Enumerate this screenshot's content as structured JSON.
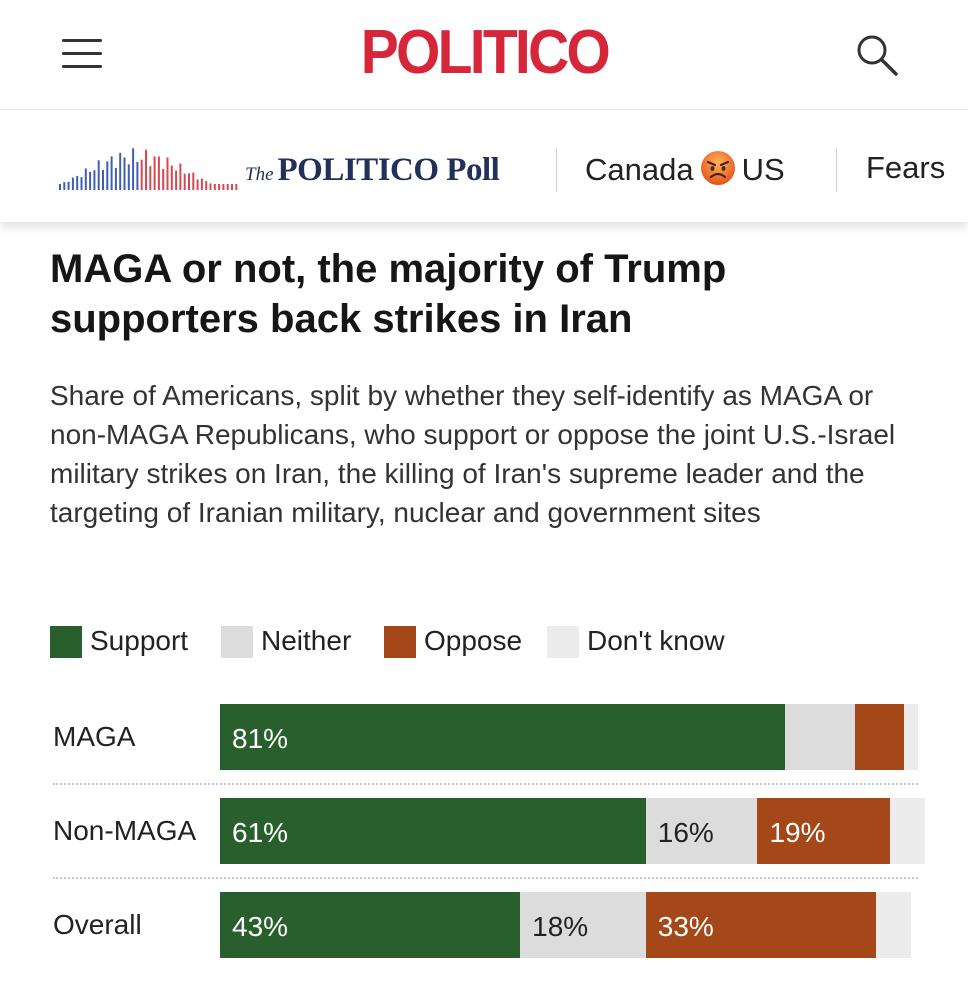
{
  "header": {
    "logo": "POLITICO"
  },
  "poll_bar": {
    "poll_prefix": "The",
    "poll_name": "POLITICO Poll",
    "nav_items": [
      "Canada",
      "US",
      "Fears"
    ],
    "emoji": "angry-face-icon"
  },
  "article": {
    "headline": "MAGA or not, the majority of Trump supporters back strikes in Iran",
    "subtitle": "Share of Americans, split by whether they self-identify as MAGA or non-MAGA Republicans, who support or oppose the joint U.S.-Israel military strikes on Iran, the killing of Iran's supreme leader and the targeting of Iranian military, nuclear and government sites"
  },
  "colors": {
    "support": "#285f2c",
    "neither": "#dcdcdc",
    "oppose": "#a4481a",
    "dont_know": "#ececec",
    "brand_red": "#d6263a",
    "poll_navy": "#22305a"
  },
  "chart_data": {
    "type": "bar",
    "orientation": "horizontal",
    "stacked": true,
    "title": "MAGA or not, the majority of Trump supporters back strikes in Iran",
    "categories": [
      "MAGA",
      "Non-MAGA",
      "Overall"
    ],
    "series": [
      {
        "name": "Support",
        "values": [
          81,
          61,
          43
        ],
        "labels": [
          "81%",
          "61%",
          "43%"
        ]
      },
      {
        "name": "Neither",
        "values": [
          10,
          16,
          18
        ],
        "labels": [
          "",
          "16%",
          "18%"
        ]
      },
      {
        "name": "Oppose",
        "values": [
          7,
          19,
          33
        ],
        "labels": [
          "",
          "19%",
          "33%"
        ]
      },
      {
        "name": "Don't know",
        "values": [
          2,
          5,
          5
        ],
        "labels": [
          "",
          "",
          ""
        ]
      }
    ],
    "xlim": [
      0,
      100
    ],
    "legend": [
      "Support",
      "Neither",
      "Oppose",
      "Don't know"
    ],
    "legend_position": "top"
  }
}
